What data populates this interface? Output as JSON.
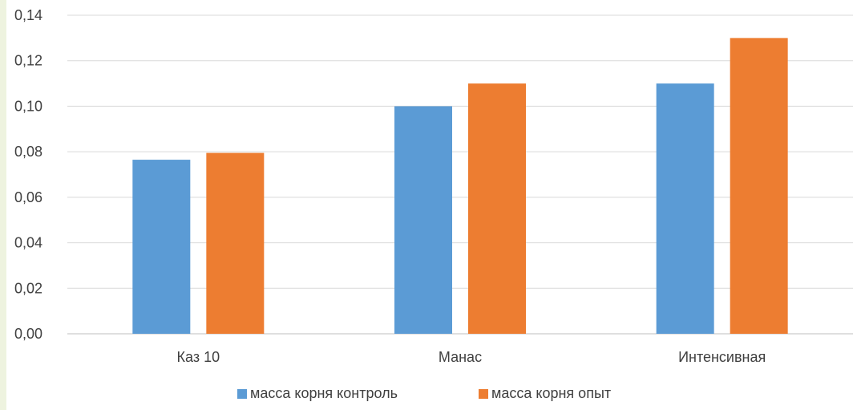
{
  "chart_data": {
    "type": "bar",
    "title": "",
    "xlabel": "",
    "ylabel": "",
    "categories": [
      "Каз 10",
      "Манас",
      "Интенсивная"
    ],
    "series": [
      {
        "name": "масса корня контроль",
        "color": "#5b9bd5",
        "values": [
          0.0765,
          0.1,
          0.11
        ]
      },
      {
        "name": "масса корня опыт",
        "color": "#ed7d31",
        "values": [
          0.0795,
          0.11,
          0.13
        ]
      }
    ],
    "ylim": [
      0,
      0.14
    ],
    "yticks": [
      "0,00",
      "0,02",
      "0,04",
      "0,06",
      "0,08",
      "0,10",
      "0,12",
      "0,14"
    ],
    "grid": true,
    "legend_position": "bottom"
  }
}
